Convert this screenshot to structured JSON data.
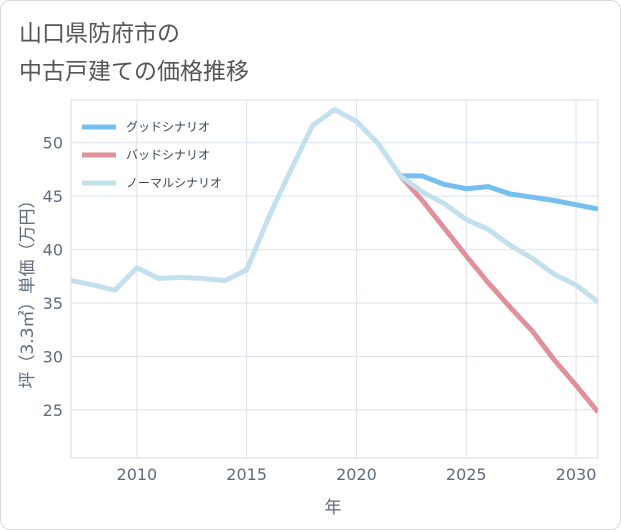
{
  "title_lines": [
    "山口県防府市の",
    "中古戸建ての価格推移"
  ],
  "chart_data": {
    "type": "line",
    "title": "山口県防府市の中古戸建ての価格推移",
    "xlabel": "年",
    "ylabel": "坪（3.3㎡）単価（万円）",
    "xlim": [
      2007,
      2031
    ],
    "ylim": [
      20.5,
      54
    ],
    "x_ticks": [
      2010,
      2015,
      2020,
      2025,
      2030
    ],
    "y_ticks": [
      25,
      30,
      35,
      40,
      45,
      50
    ],
    "grid": true,
    "legend_position": "top-left",
    "series": [
      {
        "name": "グッドシナリオ",
        "color": "#75bff0",
        "x": [
          2022,
          2023,
          2024,
          2025,
          2026,
          2027,
          2028,
          2029,
          2030,
          2031
        ],
        "y": [
          46.9,
          46.9,
          46.1,
          45.7,
          45.9,
          45.2,
          44.9,
          44.6,
          44.2,
          43.8
        ]
      },
      {
        "name": "バッドシナリオ",
        "color": "#e0909a",
        "x": [
          2022,
          2023,
          2024,
          2025,
          2026,
          2027,
          2028,
          2029,
          2030,
          2031
        ],
        "y": [
          46.9,
          44.6,
          42.0,
          39.4,
          36.9,
          34.6,
          32.4,
          29.7,
          27.3,
          24.8
        ]
      },
      {
        "name": "ノーマルシナリオ",
        "color": "#c3e0ee",
        "x": [
          2007,
          2008,
          2009,
          2010,
          2011,
          2012,
          2013,
          2014,
          2015,
          2016,
          2017,
          2018,
          2019,
          2020,
          2021,
          2022,
          2023,
          2024,
          2025,
          2026,
          2027,
          2028,
          2029,
          2030,
          2031
        ],
        "y": [
          37.1,
          36.7,
          36.2,
          38.3,
          37.3,
          37.4,
          37.3,
          37.1,
          38.1,
          43.0,
          47.4,
          51.6,
          53.1,
          52.0,
          49.9,
          46.9,
          45.4,
          44.3,
          42.8,
          41.9,
          40.4,
          39.2,
          37.7,
          36.7,
          35.1
        ]
      }
    ]
  }
}
